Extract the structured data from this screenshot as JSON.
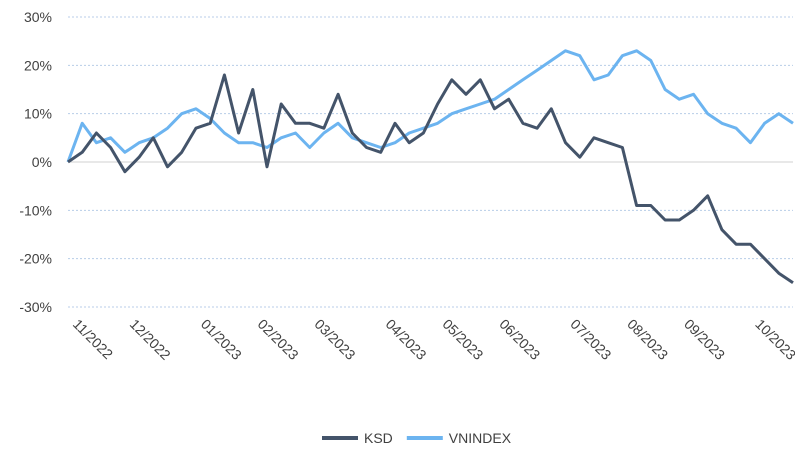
{
  "chart_data": {
    "type": "line",
    "categories": [
      "11/2022",
      null,
      null,
      null,
      "12/2022",
      null,
      null,
      null,
      null,
      "01/2023",
      null,
      null,
      null,
      "02/2023",
      null,
      null,
      null,
      "03/2023",
      null,
      null,
      null,
      null,
      "04/2023",
      null,
      null,
      null,
      "05/2023",
      null,
      null,
      null,
      "06/2023",
      null,
      null,
      null,
      null,
      "07/2023",
      null,
      null,
      null,
      "08/2023",
      null,
      null,
      null,
      "09/2023",
      null,
      null,
      null,
      null,
      "10/2023",
      null,
      null,
      null
    ],
    "series": [
      {
        "name": "KSD",
        "color": "#44546a",
        "values": [
          0,
          2,
          6,
          3,
          -2,
          1,
          5,
          -1,
          2,
          7,
          8,
          18,
          6,
          15,
          -1,
          12,
          8,
          8,
          7,
          14,
          6,
          3,
          2,
          8,
          4,
          6,
          12,
          17,
          14,
          17,
          11,
          13,
          8,
          7,
          11,
          4,
          1,
          5,
          4,
          3,
          -9,
          -9,
          -12,
          -12,
          -10,
          -7,
          -14,
          -17,
          -17,
          -20,
          -23,
          -25
        ]
      },
      {
        "name": "VNINDEX",
        "color": "#6cb4f0",
        "values": [
          0,
          8,
          4,
          5,
          2,
          4,
          5,
          7,
          10,
          11,
          9,
          6,
          4,
          4,
          3,
          5,
          6,
          3,
          6,
          8,
          5,
          4,
          3,
          4,
          6,
          7,
          8,
          10,
          11,
          12,
          13,
          15,
          17,
          19,
          21,
          23,
          22,
          17,
          18,
          22,
          23,
          21,
          15,
          13,
          14,
          10,
          8,
          7,
          4,
          8,
          10,
          8
        ]
      }
    ],
    "ylim": [
      -30,
      30
    ],
    "yticks": [
      {
        "value": -30,
        "label": "-30%"
      },
      {
        "value": -20,
        "label": "-20%"
      },
      {
        "value": -10,
        "label": "-10%"
      },
      {
        "value": 0,
        "label": "0%"
      },
      {
        "value": 10,
        "label": "10%"
      },
      {
        "value": 20,
        "label": "20%"
      },
      {
        "value": 30,
        "label": "30%"
      }
    ],
    "grid": true,
    "legend": "bottom"
  }
}
